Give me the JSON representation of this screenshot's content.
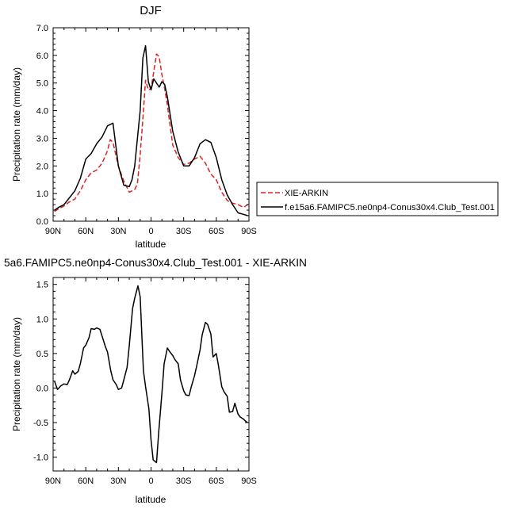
{
  "chart_data": [
    {
      "type": "line",
      "title": "DJF",
      "xlabel": "latitude",
      "ylabel": "Precipitation rate (mm/day)",
      "xlim": [
        90,
        -90
      ],
      "ylim": [
        0,
        7
      ],
      "x_ticks": [
        90,
        60,
        30,
        0,
        -30,
        -60,
        -90
      ],
      "x_tick_labels": [
        "90N",
        "60N",
        "30N",
        "0",
        "30S",
        "60S",
        "90S"
      ],
      "y_ticks": [
        0,
        1,
        2,
        3,
        4,
        5,
        6,
        7
      ],
      "y_tick_labels": [
        "0.0",
        "1.0",
        "2.0",
        "3.0",
        "4.0",
        "5.0",
        "6.0",
        "7.0"
      ],
      "legend_position": "right",
      "series": [
        {
          "name": "XIE-ARKIN",
          "color": "#dd2222",
          "dash": "dashed",
          "x": [
            88.75,
            85,
            80,
            75,
            70,
            65,
            60,
            55,
            50,
            45,
            40,
            37.5,
            35,
            30,
            25,
            20,
            15,
            12.5,
            10,
            7.5,
            5,
            2.5,
            0,
            -2.5,
            -5,
            -7.5,
            -10,
            -12.5,
            -15,
            -20,
            -25,
            -30,
            -35,
            -40,
            -45,
            -50,
            -55,
            -60,
            -65,
            -70,
            -75,
            -80,
            -85,
            -88.75
          ],
          "y": [
            0.35,
            0.45,
            0.55,
            0.7,
            0.8,
            1.1,
            1.5,
            1.75,
            1.85,
            2.1,
            2.55,
            2.95,
            2.85,
            2.0,
            1.45,
            1.05,
            1.15,
            1.35,
            2.4,
            3.7,
            5.1,
            4.75,
            4.8,
            5.4,
            6.05,
            5.95,
            5.3,
            4.8,
            4.2,
            2.75,
            2.3,
            2.05,
            2.1,
            2.25,
            2.35,
            2.1,
            1.7,
            1.5,
            1.05,
            0.75,
            0.65,
            0.6,
            0.5,
            0.6
          ]
        },
        {
          "name": "f.e15a6.FAMIPC5.ne0np4-Conus30x4.Club_Test.001",
          "color": "#000000",
          "dash": "solid",
          "x": [
            88.75,
            85,
            80,
            75,
            70,
            65,
            60,
            55,
            50,
            45,
            40,
            35,
            30,
            25,
            20,
            17.5,
            15,
            10,
            7.5,
            5,
            2.5,
            0,
            -2.5,
            -5,
            -7.5,
            -10,
            -12.5,
            -15,
            -20,
            -25,
            -30,
            -35,
            -40,
            -45,
            -50,
            -55,
            -60,
            -65,
            -70,
            -75,
            -80,
            -85,
            -88.75
          ],
          "y": [
            0.4,
            0.5,
            0.6,
            0.85,
            1.1,
            1.55,
            2.25,
            2.45,
            2.8,
            3.05,
            3.45,
            3.55,
            2.0,
            1.3,
            1.25,
            1.5,
            2.0,
            4.0,
            5.9,
            6.35,
            5.05,
            4.75,
            5.15,
            5.0,
            4.85,
            5.05,
            4.95,
            4.5,
            3.25,
            2.5,
            2.0,
            2.0,
            2.3,
            2.8,
            2.95,
            2.85,
            2.3,
            1.5,
            0.95,
            0.6,
            0.3,
            0.25,
            0.2
          ]
        }
      ]
    },
    {
      "type": "line",
      "title": "5a6.FAMIPC5.ne0np4-Conus30x4.Club_Test.001 - XIE-ARKIN",
      "xlabel": "latitude",
      "ylabel": "Precipitation rate (mm/day)",
      "xlim": [
        90,
        -90
      ],
      "ylim": [
        -1.2,
        1.6
      ],
      "x_ticks": [
        90,
        60,
        30,
        0,
        -30,
        -60,
        -90
      ],
      "x_tick_labels": [
        "90N",
        "60N",
        "30N",
        "0",
        "30S",
        "60S",
        "90S"
      ],
      "y_ticks": [
        -1.0,
        -0.5,
        0.0,
        0.5,
        1.0,
        1.5
      ],
      "y_tick_labels": [
        "-1.0",
        "-0.5",
        "0.0",
        "0.5",
        "1.0",
        "1.5"
      ],
      "series": [
        {
          "color": "#000000",
          "dash": "solid",
          "x": [
            88.75,
            86,
            83,
            80,
            77,
            75,
            72,
            70,
            67,
            65,
            62,
            60,
            57,
            55,
            52,
            50,
            47,
            45,
            42,
            40,
            37,
            35,
            32,
            30,
            27,
            25,
            22,
            20,
            17,
            15,
            12,
            10,
            7,
            5,
            2,
            0,
            -2,
            -5,
            -7,
            -10,
            -12,
            -15,
            -17,
            -20,
            -22,
            -25,
            -27,
            -30,
            -32,
            -35,
            -37,
            -40,
            -42,
            -45,
            -47,
            -50,
            -52,
            -55,
            -57,
            -60,
            -62,
            -65,
            -67,
            -70,
            -72,
            -75,
            -77,
            -80,
            -82,
            -85,
            -87,
            -88.75
          ],
          "y": [
            0.1,
            -0.02,
            0.03,
            0.06,
            0.05,
            0.12,
            0.25,
            0.2,
            0.24,
            0.35,
            0.58,
            0.62,
            0.73,
            0.86,
            0.85,
            0.87,
            0.85,
            0.75,
            0.6,
            0.52,
            0.25,
            0.12,
            0.05,
            -0.02,
            0.0,
            0.12,
            0.3,
            0.62,
            1.15,
            1.3,
            1.48,
            1.32,
            0.25,
            0.02,
            -0.3,
            -0.75,
            -1.04,
            -1.08,
            -0.65,
            -0.08,
            0.35,
            0.58,
            0.53,
            0.47,
            0.41,
            0.35,
            0.12,
            -0.04,
            -0.1,
            -0.11,
            0.02,
            0.18,
            0.32,
            0.55,
            0.77,
            0.95,
            0.92,
            0.78,
            0.45,
            0.5,
            0.32,
            0.02,
            -0.05,
            -0.12,
            -0.35,
            -0.34,
            -0.22,
            -0.38,
            -0.42,
            -0.45,
            -0.48,
            -0.5
          ]
        }
      ]
    }
  ]
}
